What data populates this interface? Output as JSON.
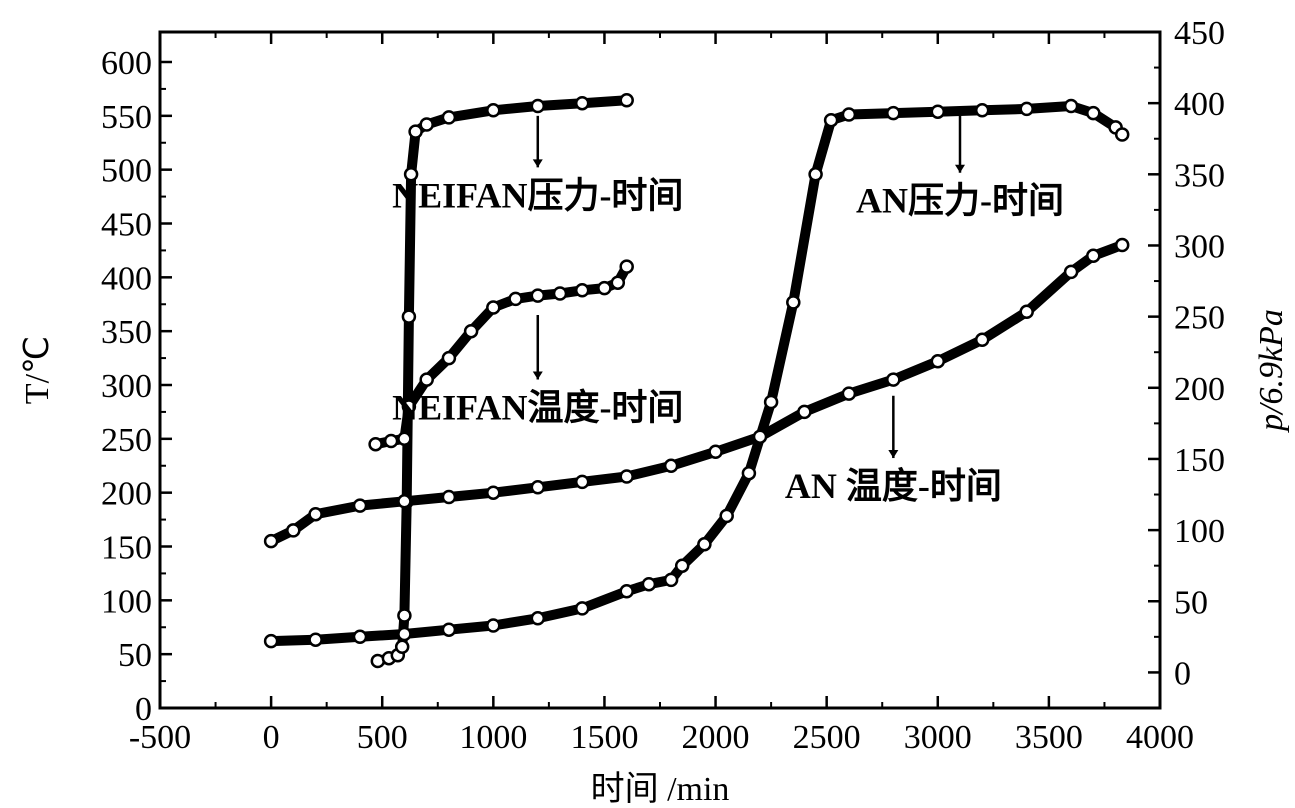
{
  "chart_data": {
    "type": "line",
    "xlabel": "时间 /min",
    "ylabel_left": "T/℃",
    "ylabel_right": "p/6.9kPa",
    "xlim": [
      -500,
      4000
    ],
    "ylim_left": [
      0,
      600
    ],
    "ylim_right": [
      -25,
      450
    ],
    "x_ticks": [
      -500,
      0,
      500,
      1000,
      1500,
      2000,
      2500,
      3000,
      3500,
      4000
    ],
    "y_left_ticks": [
      0,
      50,
      100,
      150,
      200,
      250,
      300,
      350,
      400,
      450,
      500,
      550,
      600
    ],
    "y_right_ticks": [
      0,
      50,
      100,
      150,
      200,
      250,
      300,
      350,
      400,
      450
    ],
    "grid": false,
    "series": [
      {
        "name": "NEIFAN压力-时间",
        "axis": "right",
        "color": "#000000",
        "points": [
          [
            480,
            8
          ],
          [
            530,
            10
          ],
          [
            570,
            12
          ],
          [
            590,
            18
          ],
          [
            600,
            40
          ],
          [
            610,
            120
          ],
          [
            620,
            250
          ],
          [
            630,
            350
          ],
          [
            650,
            380
          ],
          [
            700,
            385
          ],
          [
            800,
            390
          ],
          [
            1000,
            395
          ],
          [
            1200,
            398
          ],
          [
            1400,
            400
          ],
          [
            1600,
            402
          ]
        ]
      },
      {
        "name": "NEIFAN温度-时间",
        "axis": "left",
        "color": "#000000",
        "points": [
          [
            470,
            245
          ],
          [
            540,
            248
          ],
          [
            600,
            250
          ],
          [
            620,
            280
          ],
          [
            700,
            305
          ],
          [
            800,
            325
          ],
          [
            900,
            350
          ],
          [
            1000,
            372
          ],
          [
            1100,
            380
          ],
          [
            1200,
            383
          ],
          [
            1300,
            385
          ],
          [
            1400,
            388
          ],
          [
            1500,
            390
          ],
          [
            1560,
            395
          ],
          [
            1600,
            410
          ]
        ]
      },
      {
        "name": "AN压力-时间",
        "axis": "right",
        "color": "#000000",
        "points": [
          [
            0,
            22
          ],
          [
            200,
            23
          ],
          [
            400,
            25
          ],
          [
            600,
            27
          ],
          [
            800,
            30
          ],
          [
            1000,
            33
          ],
          [
            1200,
            38
          ],
          [
            1400,
            45
          ],
          [
            1600,
            57
          ],
          [
            1700,
            62
          ],
          [
            1800,
            65
          ],
          [
            1850,
            75
          ],
          [
            1950,
            90
          ],
          [
            2050,
            110
          ],
          [
            2150,
            140
          ],
          [
            2250,
            190
          ],
          [
            2350,
            260
          ],
          [
            2450,
            350
          ],
          [
            2520,
            388
          ],
          [
            2600,
            392
          ],
          [
            2800,
            393
          ],
          [
            3000,
            394
          ],
          [
            3200,
            395
          ],
          [
            3400,
            396
          ],
          [
            3600,
            398
          ],
          [
            3700,
            393
          ],
          [
            3800,
            383
          ],
          [
            3830,
            378
          ]
        ]
      },
      {
        "name": "AN 温度-时间",
        "axis": "left",
        "color": "#000000",
        "points": [
          [
            0,
            155
          ],
          [
            100,
            165
          ],
          [
            200,
            180
          ],
          [
            400,
            188
          ],
          [
            600,
            192
          ],
          [
            800,
            196
          ],
          [
            1000,
            200
          ],
          [
            1200,
            205
          ],
          [
            1400,
            210
          ],
          [
            1600,
            215
          ],
          [
            1800,
            225
          ],
          [
            2000,
            238
          ],
          [
            2200,
            252
          ],
          [
            2400,
            275
          ],
          [
            2600,
            292
          ],
          [
            2800,
            305
          ],
          [
            3000,
            322
          ],
          [
            3200,
            342
          ],
          [
            3400,
            368
          ],
          [
            3600,
            405
          ],
          [
            3700,
            420
          ],
          [
            3830,
            430
          ]
        ]
      }
    ],
    "annotations": [
      {
        "text": "NEIFAN压力-时间",
        "x": 1200,
        "y": 465,
        "axis": "left",
        "arrow_to_y": 550
      },
      {
        "text": "AN压力-时间",
        "x": 3100,
        "y": 460,
        "axis": "left",
        "arrow_to_y": 550
      },
      {
        "text": "NEIFAN温度-时间",
        "x": 1200,
        "y": 268,
        "axis": "left",
        "arrow_to_y": 365
      },
      {
        "text": "AN 温度-时间",
        "x": 2800,
        "y": 195,
        "axis": "left",
        "arrow_to_y": 290
      }
    ]
  }
}
